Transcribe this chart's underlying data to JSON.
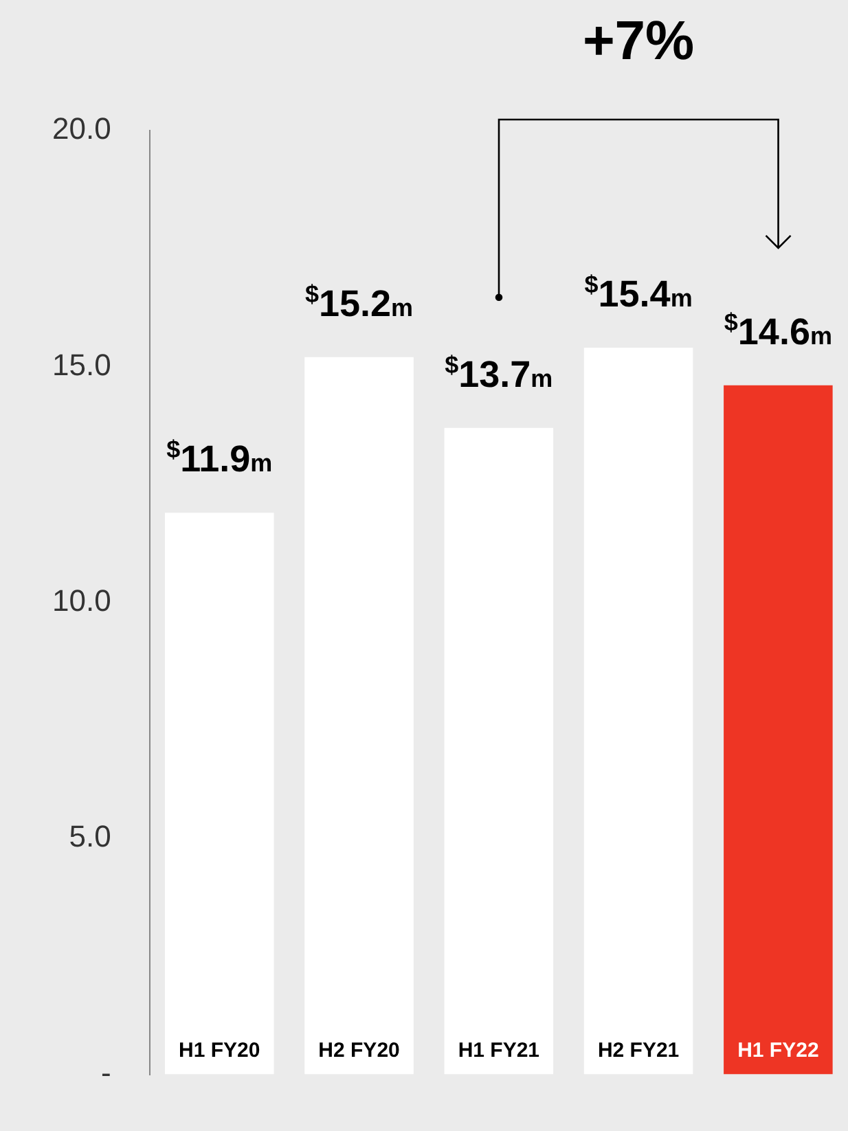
{
  "chart_data": {
    "type": "bar",
    "categories": [
      "H1 FY20",
      "H2 FY20",
      "H1 FY21",
      "H2 FY21",
      "H1 FY22"
    ],
    "values": [
      11.9,
      15.2,
      13.7,
      15.4,
      14.6
    ],
    "colors": [
      "#ffffff",
      "#ffffff",
      "#ffffff",
      "#ffffff",
      "#ee3524"
    ],
    "value_labels": [
      "$^{$}$11.9m",
      "$^{$}$15.2m",
      "$^{$}$13.7m",
      "$^{$}$15.4m",
      "$^{$}$14.6m"
    ],
    "ylim": [
      0,
      20
    ],
    "yticks": [
      {
        "value": 0,
        "label": "-"
      },
      {
        "value": 5,
        "label": "5.0"
      },
      {
        "value": 10,
        "label": "10.0"
      },
      {
        "value": 15,
        "label": "15.0"
      },
      {
        "value": 20,
        "label": "20.0"
      }
    ],
    "annotations": [
      "+7%"
    ],
    "grid": false
  }
}
